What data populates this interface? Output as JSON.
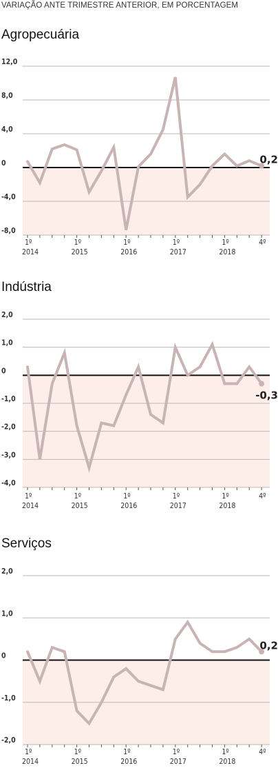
{
  "subtitle": "VARIAÇÃO ANTE TRIMESTRE ANTERIOR, EM PORCENTAGEM",
  "colors": {
    "line": "#c9b4b5",
    "negative_fill": "#fdeeea",
    "zero_line": "#111111",
    "grid": "#b8b8b8"
  },
  "chart_data": [
    {
      "type": "line",
      "title": "Agropecuária",
      "ylim": [
        -8,
        12
      ],
      "yticks": [
        "12,0",
        "8,0",
        "4,0",
        "0",
        "-4,0",
        "-8,0"
      ],
      "ytick_values": [
        12,
        8,
        4,
        0,
        -4,
        -8
      ],
      "x_tick_labels": [
        {
          "q": "1º",
          "year": "2014",
          "index": 0
        },
        {
          "q": "1º",
          "year": "2015",
          "index": 4
        },
        {
          "q": "1º",
          "year": "2016",
          "index": 8
        },
        {
          "q": "1º",
          "year": "2017",
          "index": 12
        },
        {
          "q": "1º",
          "year": "2018",
          "index": 16
        },
        {
          "q": "4º",
          "year": "",
          "index": 19
        }
      ],
      "values": [
        0.7,
        -1.8,
        2.2,
        2.7,
        2.1,
        -2.9,
        -0.4,
        2.4,
        -7.4,
        0.1,
        1.6,
        4.5,
        10.7,
        -3.5,
        -2.0,
        0.2,
        1.6,
        0.2,
        0.8,
        0.2
      ],
      "end_label": "0,2"
    },
    {
      "type": "line",
      "title": "Indústria",
      "ylim": [
        -4,
        2
      ],
      "yticks": [
        "2,0",
        "1,0",
        "0",
        "-1,0",
        "-2,0",
        "-3,0",
        "-4,0"
      ],
      "ytick_values": [
        2,
        1,
        0,
        -1,
        -2,
        -3,
        -4
      ],
      "x_tick_labels": [
        {
          "q": "1º",
          "year": "2014",
          "index": 0
        },
        {
          "q": "1º",
          "year": "2015",
          "index": 4
        },
        {
          "q": "1º",
          "year": "2016",
          "index": 8
        },
        {
          "q": "1º",
          "year": "2017",
          "index": 12
        },
        {
          "q": "1º",
          "year": "2018",
          "index": 16
        },
        {
          "q": "4º",
          "year": "",
          "index": 19
        }
      ],
      "values": [
        0.3,
        -3.0,
        -0.3,
        0.8,
        -1.8,
        -3.3,
        -1.7,
        -1.8,
        -0.7,
        0.3,
        -1.4,
        -1.7,
        1.0,
        0.0,
        0.3,
        1.1,
        -0.3,
        -0.3,
        0.3,
        -0.3
      ],
      "end_label": "-0,3"
    },
    {
      "type": "line",
      "title": "Serviços",
      "ylim": [
        -2,
        2
      ],
      "yticks": [
        "2,0",
        "1,0",
        "0",
        "-1,0",
        "-2,0"
      ],
      "ytick_values": [
        2,
        1,
        0,
        -1,
        -2
      ],
      "x_tick_labels": [
        {
          "q": "1º",
          "year": "2014",
          "index": 0
        },
        {
          "q": "1º",
          "year": "2015",
          "index": 4
        },
        {
          "q": "1º",
          "year": "2016",
          "index": 8
        },
        {
          "q": "1º",
          "year": "2017",
          "index": 12
        },
        {
          "q": "1º",
          "year": "2018",
          "index": 16
        },
        {
          "q": "4º",
          "year": "",
          "index": 19
        }
      ],
      "values": [
        0.2,
        -0.5,
        0.3,
        0.2,
        -1.2,
        -1.5,
        -1.0,
        -0.4,
        -0.2,
        -0.5,
        -0.6,
        -0.7,
        0.5,
        0.9,
        0.4,
        0.2,
        0.2,
        0.3,
        0.5,
        0.2
      ],
      "end_label": "0,2"
    }
  ]
}
